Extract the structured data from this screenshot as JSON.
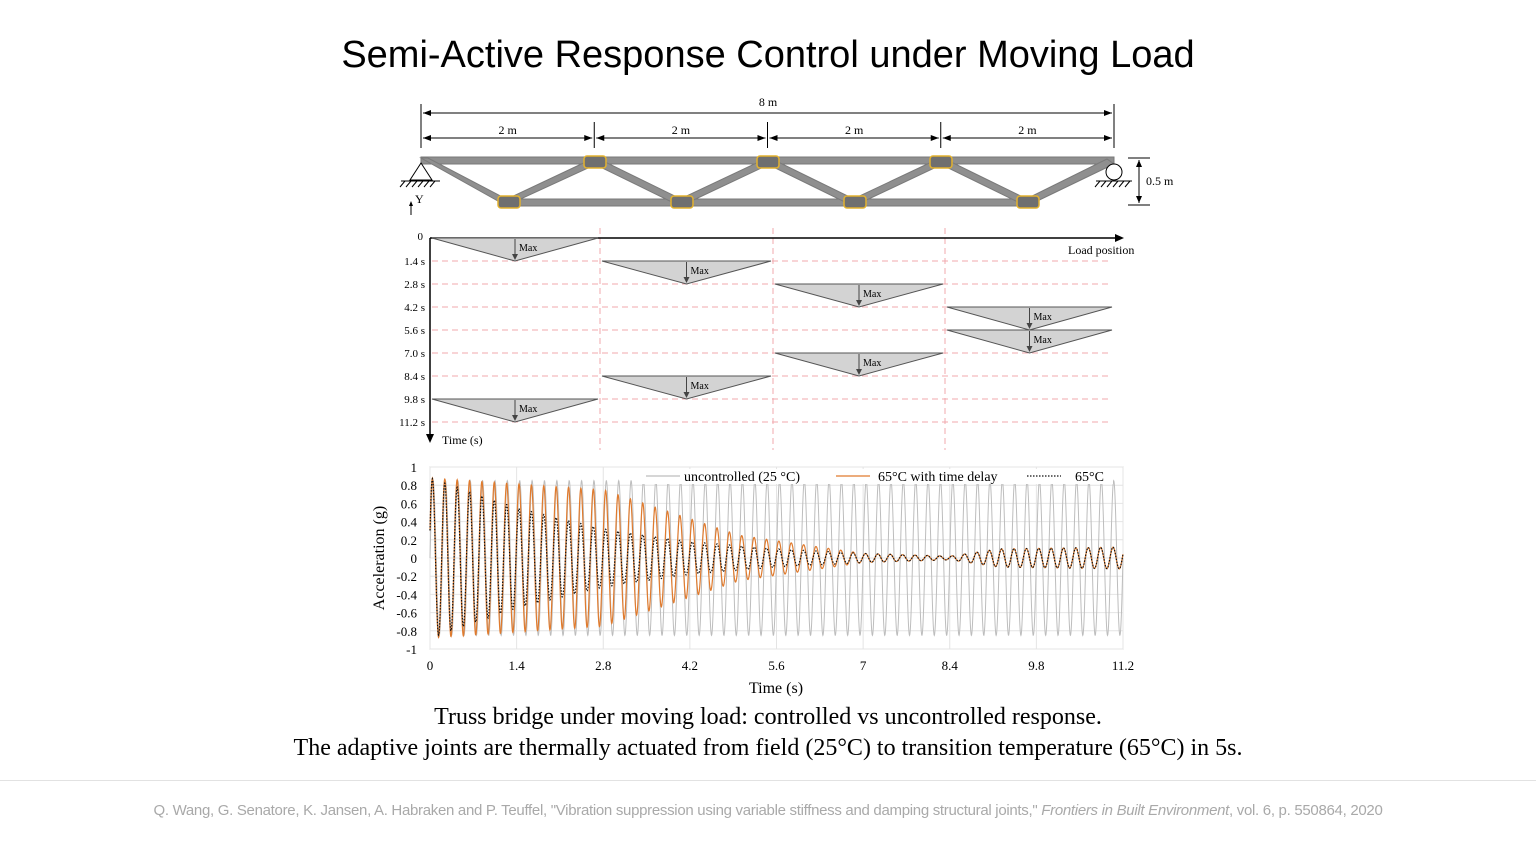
{
  "slide": {
    "title": "Semi-Active Response Control under Moving Load",
    "caption_line1": "Truss bridge under moving load: controlled vs uncontrolled response.",
    "caption_line2": "The adaptive joints are thermally actuated from field (25°C) to transition temperature (65°C) in 5s.",
    "reference": {
      "authors_title": "Q. Wang, G. Senatore, K. Jansen, A. Habraken and P. Teuffel, \"Vibration suppression using variable stiffness and damping structural joints,\"",
      "journal": "Frontiers in Built Environment",
      "details": ", vol. 6, p. 550864, 2020"
    }
  },
  "truss": {
    "total_span": "8 m",
    "bay_labels": [
      "2 m",
      "2 m",
      "2 m",
      "2 m"
    ],
    "height_label": "0.5 m",
    "axis_label": "Y",
    "colors": {
      "member": "#8f8f8f",
      "joint": "#f3c241",
      "joint_fill": "#777777"
    }
  },
  "load_diagram": {
    "origin_label": "0",
    "x_axis_label": "Load position",
    "y_axis_label": "Time (s)",
    "time_labels": [
      "1.4 s",
      "2.8 s",
      "4.2 s",
      "5.6 s",
      "7.0 s",
      "8.4 s",
      "9.8 s",
      "11.2 s"
    ],
    "marker_label": "Max",
    "load_sequence_bays": [
      1,
      2,
      3,
      4,
      4,
      3,
      2,
      1
    ],
    "colors": {
      "triangle": "#d3d3d3",
      "grid": "#f0a8ae"
    }
  },
  "chart_data": {
    "type": "line",
    "xlabel": "Time (s)",
    "ylabel": "Acceleration (g)",
    "xlim": [
      0,
      11.2
    ],
    "ylim": [
      -1,
      1
    ],
    "x_ticks": [
      "0",
      "1.4",
      "2.8",
      "4.2",
      "5.6",
      "7",
      "8.4",
      "9.8",
      "11.2"
    ],
    "y_ticks": [
      "1",
      "0.8",
      "0.6",
      "0.4",
      "0.2",
      "0",
      "-0.2",
      "-0.4",
      "-0.6",
      "-0.8",
      "-1"
    ],
    "grid": true,
    "legend_position": "top",
    "series": [
      {
        "name": "uncontrolled (25 °C)",
        "color": "#bdbdbd",
        "style": "solid",
        "approx_peak_amplitude": [
          [
            0,
            0.85
          ],
          [
            11.2,
            0.85
          ]
        ]
      },
      {
        "name": "65°C with time delay",
        "color": "#e07b2e",
        "style": "solid",
        "approx_peak_amplitude": [
          [
            0,
            0.88
          ],
          [
            2.8,
            0.75
          ],
          [
            5.0,
            0.25
          ],
          [
            7.0,
            0.05
          ],
          [
            8.4,
            0.02
          ],
          [
            9.2,
            0.1
          ],
          [
            11.2,
            0.12
          ]
        ]
      },
      {
        "name": "65°C",
        "color": "#111111",
        "style": "dotted",
        "approx_peak_amplitude": [
          [
            0,
            0.88
          ],
          [
            1.4,
            0.55
          ],
          [
            2.8,
            0.32
          ],
          [
            4.2,
            0.18
          ],
          [
            5.6,
            0.1
          ],
          [
            7.0,
            0.05
          ],
          [
            8.4,
            0.02
          ],
          [
            9.2,
            0.1
          ],
          [
            11.2,
            0.12
          ]
        ]
      }
    ],
    "approx_period_s": 0.2
  }
}
